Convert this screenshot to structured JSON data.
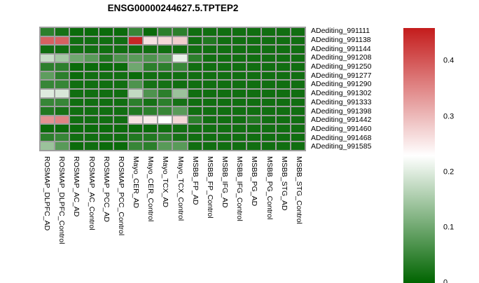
{
  "title": "ENSG00000244627.5.TPTEP2",
  "chart_data": {
    "type": "heatmap",
    "title": "ENSG00000244627.5.TPTEP2",
    "rows": [
      "ADediting_991111",
      "ADediting_991138",
      "ADediting_991144",
      "ADediting_991208",
      "ADediting_991250",
      "ADediting_991277",
      "ADediting_991290",
      "ADediting_991302",
      "ADediting_991333",
      "ADediting_991398",
      "ADediting_991442",
      "ADediting_991460",
      "ADediting_991468",
      "ADediting_991585"
    ],
    "columns": [
      "ROSMAP_DLPFC_AD",
      "ROSMAP_DLPFC_Control",
      "ROSMAP_AC_AD",
      "ROSMAP_AC_Control",
      "ROSMAP_PCC_AD",
      "ROSMAP_PCC_Control",
      "Mayo_CER_AD",
      "Mayo_CER_Control",
      "Mayo_TCX_AD",
      "Mayo_TCX_Control",
      "MSBB_FP_AD",
      "MSBB_FP_Control",
      "MSBB_IFG_AD",
      "MSBB_IFG_Control",
      "MSBB_PG_AD",
      "MSBB_PG_Control",
      "MSBB_STG_AD",
      "MSBB_STG_Control"
    ],
    "values": [
      [
        0.04,
        0.02,
        0.01,
        0.01,
        0.01,
        0.01,
        0.05,
        0.01,
        0.04,
        0.04,
        0.015,
        0.015,
        0.015,
        0.015,
        0.015,
        0.015,
        0.015,
        0.015
      ],
      [
        0.39,
        0.39,
        0.015,
        0.015,
        0.015,
        0.015,
        0.45,
        0.26,
        0.27,
        0.28,
        0.015,
        0.03,
        0.015,
        0.015,
        0.015,
        0.015,
        0.015,
        0.015
      ],
      [
        0.015,
        0.015,
        0.015,
        0.015,
        0.015,
        0.015,
        0.015,
        0.015,
        0.015,
        0.015,
        0.015,
        0.015,
        0.015,
        0.015,
        0.015,
        0.015,
        0.015,
        0.015
      ],
      [
        0.18,
        0.15,
        0.1,
        0.08,
        0.03,
        0.07,
        0.08,
        0.07,
        0.085,
        0.21,
        0.04,
        0.015,
        0.015,
        0.015,
        0.015,
        0.015,
        0.015,
        0.015
      ],
      [
        0.04,
        0.04,
        0.01,
        0.01,
        0.01,
        0.01,
        0.1,
        0.04,
        0.04,
        0.05,
        0.015,
        0.015,
        0.015,
        0.015,
        0.015,
        0.015,
        0.015,
        0.015
      ],
      [
        0.085,
        0.04,
        0.01,
        0.015,
        0.015,
        0.015,
        0.01,
        0.015,
        0.015,
        0.015,
        0.015,
        0.015,
        0.015,
        0.015,
        0.015,
        0.015,
        0.015,
        0.015
      ],
      [
        0.05,
        0.05,
        0.015,
        0.015,
        0.015,
        0.015,
        0.07,
        0.02,
        0.02,
        0.015,
        0.015,
        0.015,
        0.015,
        0.015,
        0.015,
        0.015,
        0.015,
        0.015
      ],
      [
        0.2,
        0.195,
        0.015,
        0.015,
        0.015,
        0.015,
        0.175,
        0.07,
        0.04,
        0.14,
        0.015,
        0.015,
        0.015,
        0.015,
        0.015,
        0.015,
        0.015,
        0.015
      ],
      [
        0.05,
        0.05,
        0.015,
        0.015,
        0.015,
        0.015,
        0.04,
        0.02,
        0.04,
        0.02,
        0.015,
        0.015,
        0.015,
        0.015,
        0.015,
        0.015,
        0.015,
        0.015
      ],
      [
        0.03,
        0.02,
        0.015,
        0.015,
        0.015,
        0.015,
        0.03,
        0.04,
        0.05,
        0.08,
        0.015,
        0.015,
        0.015,
        0.015,
        0.015,
        0.015,
        0.015,
        0.015
      ],
      [
        0.34,
        0.355,
        0.015,
        0.015,
        0.015,
        0.015,
        0.26,
        0.25,
        0.23,
        0.27,
        0.04,
        0.015,
        0.015,
        0.015,
        0.03,
        0.015,
        0.015,
        0.015
      ],
      [
        0.01,
        0.01,
        0.01,
        0.01,
        0.01,
        0.01,
        0.01,
        0.01,
        0.015,
        0.015,
        0.015,
        0.015,
        0.015,
        0.015,
        0.015,
        0.015,
        0.015,
        0.015
      ],
      [
        0.04,
        0.05,
        0.015,
        0.015,
        0.015,
        0.015,
        0.03,
        0.03,
        0.04,
        0.02,
        0.015,
        0.015,
        0.015,
        0.015,
        0.015,
        0.015,
        0.015,
        0.015
      ],
      [
        0.14,
        0.08,
        0.01,
        0.015,
        0.01,
        0.01,
        0.05,
        0.04,
        0.08,
        0.08,
        0.015,
        0.015,
        0.015,
        0.015,
        0.015,
        0.015,
        0.015,
        0.015
      ]
    ],
    "colormap": {
      "low": "#006400",
      "mid": "#ffffff",
      "high": "#c41c1c",
      "midpoint": 0.23,
      "vmin": 0,
      "vmax": 0.46
    },
    "grid_color": "#9e9e9e",
    "colorbar_ticks": [
      "0",
      "0.1",
      "0.2",
      "0.3",
      "0.4"
    ],
    "colorbar_tick_values": [
      0,
      0.1,
      0.2,
      0.3,
      0.4
    ],
    "legend_position": "right",
    "xlabel": "",
    "ylabel": ""
  }
}
